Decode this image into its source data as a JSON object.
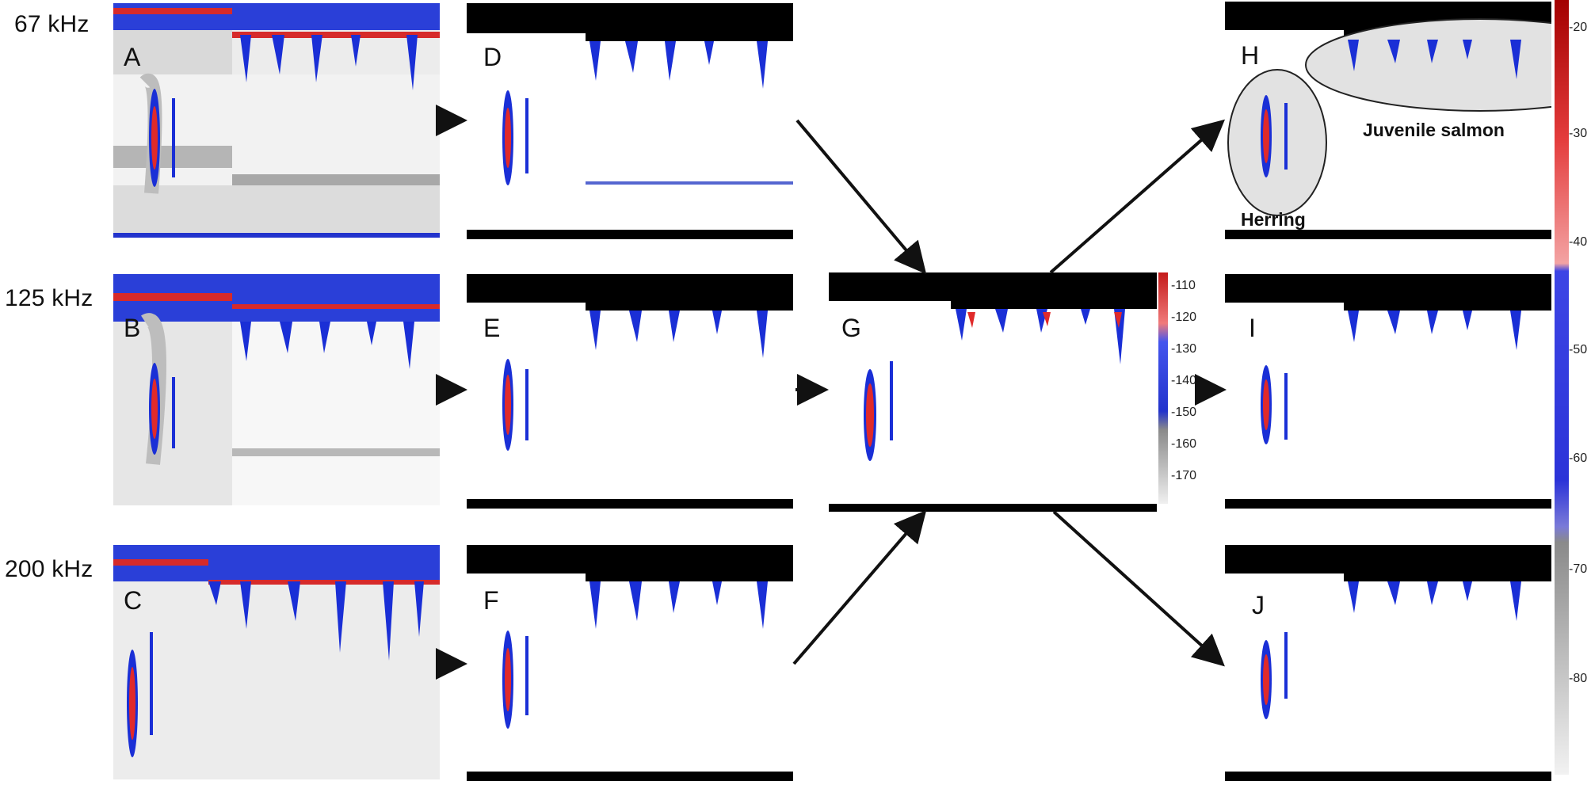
{
  "rows": [
    {
      "frequency": "67 kHz"
    },
    {
      "frequency": "125 kHz"
    },
    {
      "frequency": "200 kHz"
    }
  ],
  "panels": {
    "A": "A",
    "B": "B",
    "C": "C",
    "D": "D",
    "E": "E",
    "F": "F",
    "G": "G",
    "H": "H",
    "I": "I",
    "J": "J"
  },
  "labels": {
    "herring": "Herring",
    "juvenile_salmon": "Juvenile salmon"
  },
  "colorbar_g": {
    "ticks": [
      "-110",
      "-120",
      "-130",
      "-140",
      "-150",
      "-160",
      "-170"
    ]
  },
  "colorbar_right": {
    "ticks": [
      "-20",
      "-30",
      "-40",
      "-50",
      "-60",
      "-70",
      "-80"
    ]
  },
  "colors": {
    "echo_red": "#e02a2a",
    "echo_blue": "#1a2fd6",
    "background_gray": "#c8c8c8"
  }
}
